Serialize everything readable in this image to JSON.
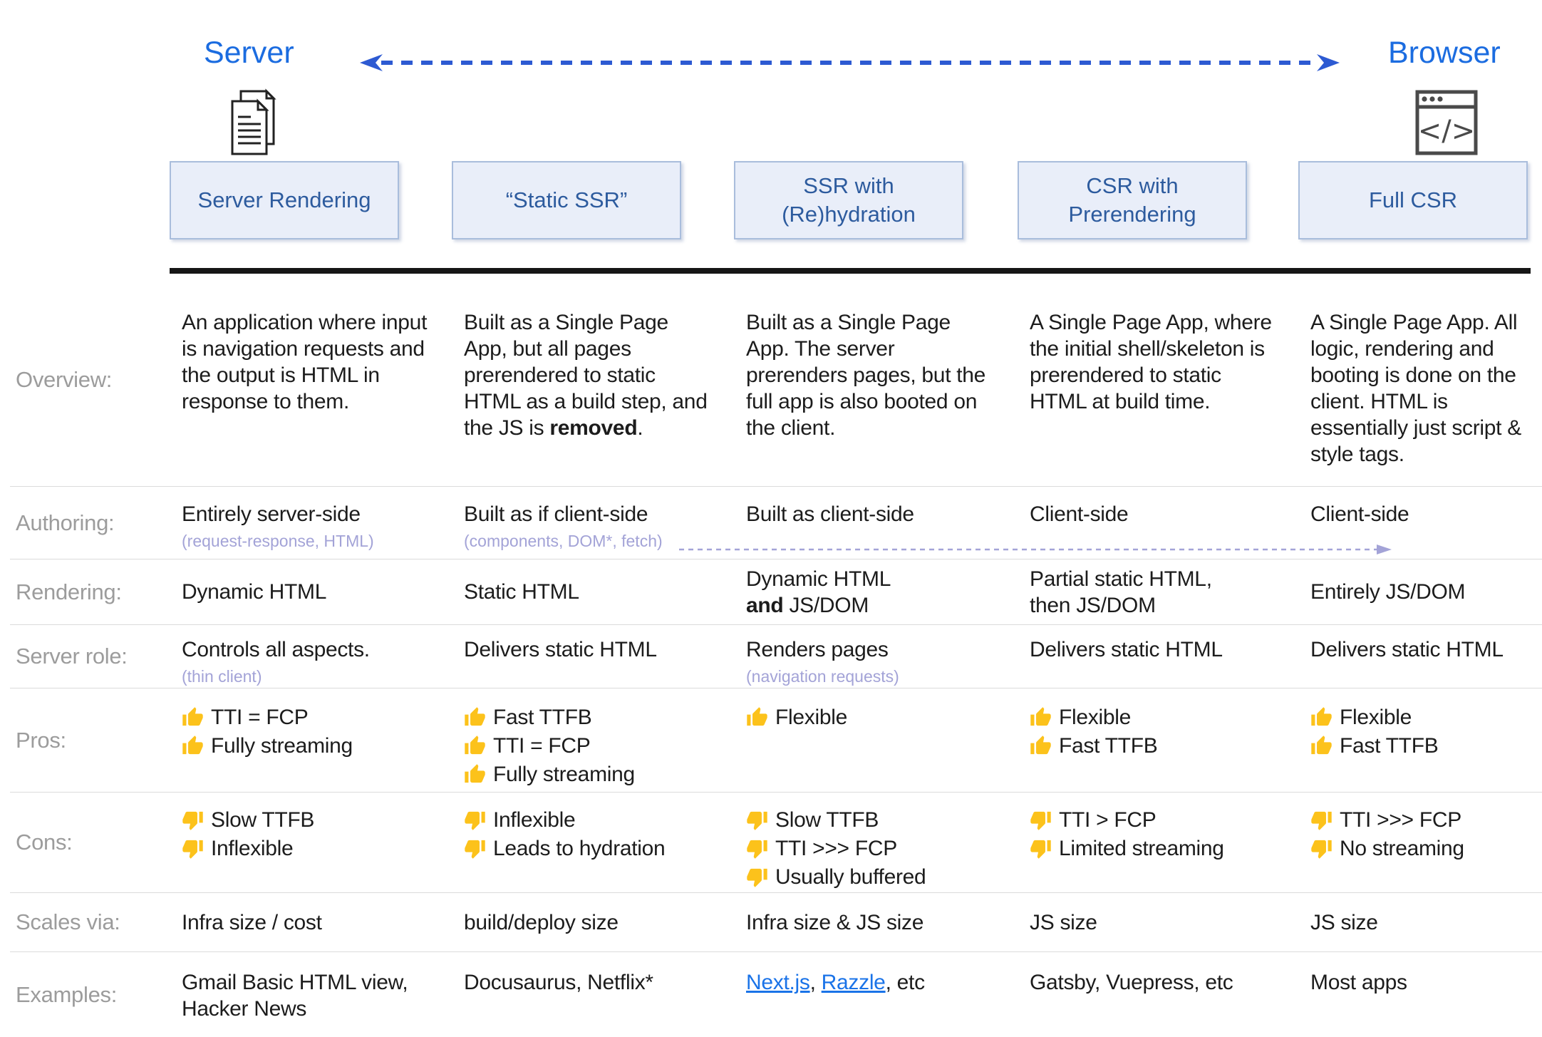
{
  "top": {
    "server_label": "Server",
    "browser_label": "Browser"
  },
  "icons": {
    "server": "documents-icon",
    "browser": "code-window-icon",
    "pros": "thumbs-up-icon",
    "cons": "thumbs-down-icon"
  },
  "row_labels": {
    "overview": "Overview:",
    "authoring": "Authoring:",
    "rendering": "Rendering:",
    "server_role": "Server role:",
    "pros": "Pros:",
    "cons": "Cons:",
    "scales_via": "Scales via:",
    "examples": "Examples:"
  },
  "columns": [
    {
      "header": "Server Rendering",
      "overview": "An application where input is navigation requests and the output is HTML in response to them.",
      "authoring": "Entirely server-side",
      "authoring_note": "(request-response, HTML)",
      "rendering": "Dynamic HTML",
      "server_role": "Controls all aspects.",
      "server_role_note": "(thin client)",
      "pros": [
        "TTI = FCP",
        "Fully streaming"
      ],
      "cons": [
        "Slow TTFB",
        "Inflexible"
      ],
      "scales_via": "Infra size / cost",
      "examples": "Gmail Basic HTML view, Hacker News"
    },
    {
      "header": "“Static SSR”",
      "overview_pre": "Built as a Single Page App, but all pages prerendered to static HTML as a build step, and the JS is ",
      "overview_bold": "removed",
      "overview_post": ".",
      "authoring": "Built as if client-side",
      "authoring_note": "(components, DOM*, fetch)",
      "rendering": "Static HTML",
      "server_role": "Delivers static HTML",
      "pros": [
        "Fast TTFB",
        "TTI = FCP",
        "Fully streaming"
      ],
      "cons": [
        "Inflexible",
        "Leads to hydration"
      ],
      "scales_via": "build/deploy size",
      "examples": "Docusaurus, Netflix*"
    },
    {
      "header": "SSR with (Re)hydration",
      "overview": "Built as a Single Page App. The server prerenders pages, but the full app is also booted on the client.",
      "authoring": "Built as client-side",
      "rendering_line1": "Dynamic HTML",
      "rendering_bold": "and",
      "rendering_post": " JS/DOM",
      "server_role": "Renders pages",
      "server_role_note": "(navigation requests)",
      "pros": [
        "Flexible"
      ],
      "cons": [
        "Slow TTFB",
        "TTI >>> FCP",
        "Usually buffered"
      ],
      "scales_via": "Infra size & JS size",
      "examples_link1": "Next.js",
      "examples_sep": ", ",
      "examples_link2": "Razzle",
      "examples_rest": ", etc"
    },
    {
      "header": "CSR with Prerendering",
      "overview": "A Single Page App, where the initial shell/skeleton is prerendered to static HTML at build time.",
      "authoring": "Client-side",
      "rendering": "Partial static HTML, then JS/DOM",
      "server_role": "Delivers static HTML",
      "pros": [
        "Flexible",
        "Fast TTFB"
      ],
      "cons": [
        "TTI > FCP",
        "Limited streaming"
      ],
      "scales_via": "JS size",
      "examples": "Gatsby, Vuepress, etc"
    },
    {
      "header": "Full CSR",
      "overview": "A Single Page App. All logic, rendering and booting is done on the client. HTML is essentially just script & style tags.",
      "authoring": "Client-side",
      "rendering": "Entirely JS/DOM",
      "server_role": "Delivers static HTML",
      "pros": [
        "Flexible",
        "Fast TTFB"
      ],
      "cons": [
        "TTI >>> FCP",
        "No streaming"
      ],
      "scales_via": "JS size",
      "examples": "Most apps"
    }
  ],
  "colors": {
    "accent_blue": "#1b6ce0",
    "arrow_blue": "#2d5ad2",
    "header_text": "#2d5b9e",
    "header_bg": "#e9eef9",
    "header_border": "#a9bddc",
    "lavender": "#a3a3d7",
    "link_blue": "#1a73e8",
    "thumb_yellow": "#fcc21b",
    "label_gray": "#9c9c9c"
  }
}
